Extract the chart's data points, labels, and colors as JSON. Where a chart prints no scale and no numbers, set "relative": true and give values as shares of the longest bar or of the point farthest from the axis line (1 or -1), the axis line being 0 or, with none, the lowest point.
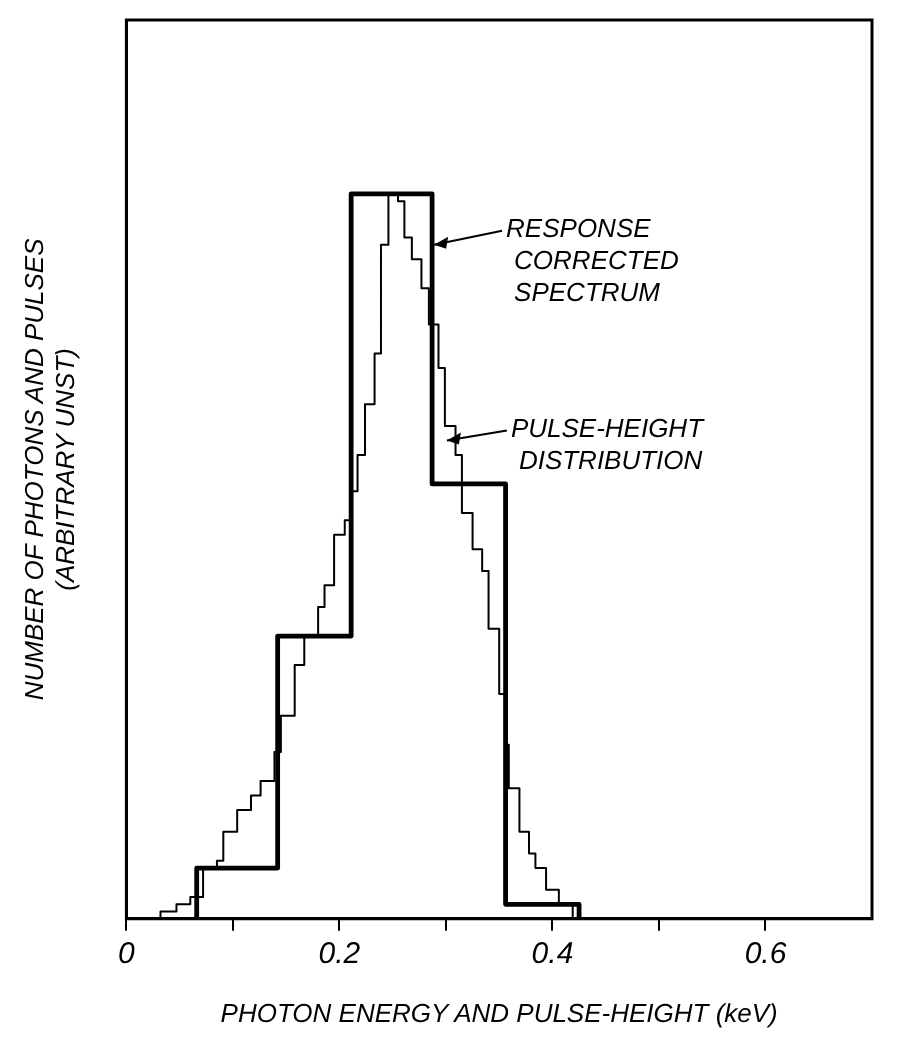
{
  "chart_data": {
    "type": "step",
    "xlabel": "PHOTON ENERGY AND PULSE-HEIGHT (keV)",
    "ylabel": "NUMBER OF PHOTONS AND PULSES\n(ARBITRARY UNST)",
    "relative": true,
    "xlim": [
      0,
      0.7
    ],
    "xticks": [
      0,
      {
        "value": 0.1,
        "label": null
      },
      0.2,
      {
        "value": 0.3,
        "label": null
      },
      0.4,
      {
        "value": 0.5,
        "label": null
      },
      0.6
    ],
    "grid": false,
    "legend": "right",
    "series": [
      {
        "name": "RESPONSE CORRECTED SPECTRUM",
        "color": "#000000",
        "x": [
          0.066,
          0.066,
          0.142,
          0.211,
          0.287,
          0.356,
          0.425
        ],
        "values": [
          0,
          0.07,
          0.39,
          1,
          0.6,
          0.02,
          0
        ]
      },
      {
        "name": "PULSE-HEIGHT DISTRIBUTION",
        "color": "#000000",
        "x": [
          0.032,
          0.032,
          0.047,
          0.06,
          0.072,
          0.085,
          0.091,
          0.104,
          0.117,
          0.126,
          0.139,
          0.145,
          0.158,
          0.167,
          0.18,
          0.186,
          0.195,
          0.205,
          0.211,
          0.217,
          0.224,
          0.233,
          0.239,
          0.246,
          0.255,
          0.261,
          0.268,
          0.277,
          0.284,
          0.293,
          0.299,
          0.309,
          0.315,
          0.325,
          0.334,
          0.34,
          0.35,
          0.356,
          0.359,
          0.369,
          0.378,
          0.384,
          0.394,
          0.406,
          0.419
        ],
        "values": [
          0,
          0.01,
          0.02,
          0.03,
          0.07,
          0.08,
          0.12,
          0.15,
          0.17,
          0.19,
          0.23,
          0.28,
          0.35,
          0.39,
          0.43,
          0.46,
          0.53,
          0.55,
          0.59,
          0.64,
          0.71,
          0.78,
          0.93,
          1.0,
          0.99,
          0.94,
          0.91,
          0.87,
          0.82,
          0.76,
          0.68,
          0.64,
          0.56,
          0.51,
          0.48,
          0.4,
          0.31,
          0.24,
          0.18,
          0.12,
          0.09,
          0.07,
          0.04,
          0.02,
          0
        ]
      }
    ]
  }
}
